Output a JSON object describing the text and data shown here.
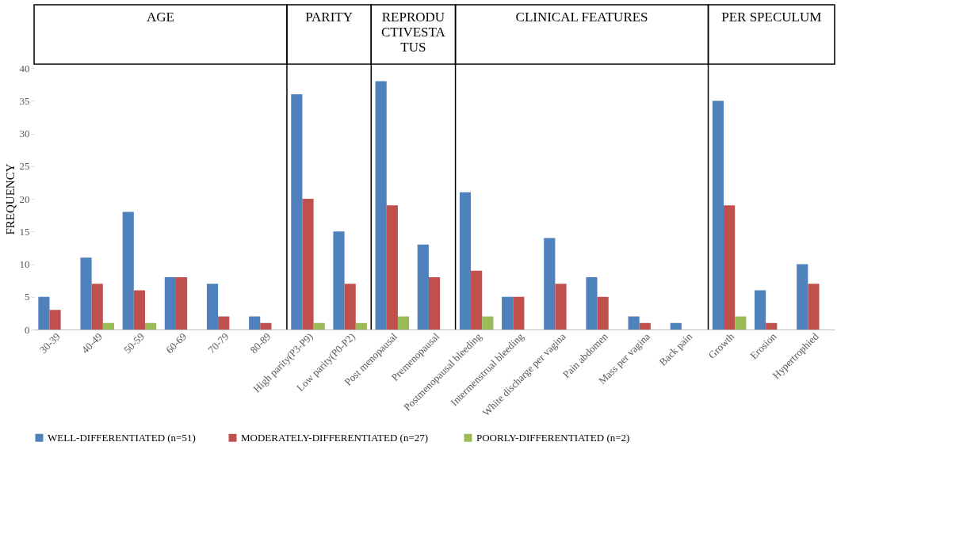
{
  "chart_data": {
    "type": "bar",
    "ylabel": "FREQUENCY",
    "categories": [
      "30-39",
      "40-49",
      "50-59",
      "60-69",
      "70-79",
      "80-89",
      "High parity(P3-P9)",
      "Low parity(P0-P2)",
      "Post menopausal",
      "Premenopausal",
      "Postmenopausal bleeding",
      "Intermenstrual bleeding",
      "White discharge per vagina",
      "Pain abdomen",
      "Mass per vagina",
      "Back pain",
      "Growth",
      "Erosion",
      "Hypertrophied"
    ],
    "series": [
      {
        "name": "WELL-DIFFERENTIATED (n=51)",
        "color": "#4f81bd",
        "values": [
          5,
          11,
          18,
          8,
          7,
          2,
          36,
          15,
          38,
          13,
          21,
          5,
          14,
          8,
          2,
          1,
          35,
          6,
          10
        ]
      },
      {
        "name": "MODERATELY-DIFFERENTIATED  (n=27)",
        "color": "#c0504d",
        "values": [
          3,
          7,
          6,
          8,
          2,
          1,
          20,
          7,
          19,
          8,
          9,
          5,
          7,
          5,
          1,
          0,
          19,
          1,
          7
        ]
      },
      {
        "name": "POORLY-DIFFERENTIATED (n=2)",
        "color": "#9bbb59",
        "values": [
          0,
          1,
          1,
          0,
          0,
          0,
          1,
          1,
          2,
          0,
          2,
          0,
          0,
          0,
          0,
          0,
          2,
          0,
          0
        ]
      }
    ],
    "annotations": [
      "AGE",
      "PARITY",
      "REPRODU CTIVESTA TUS",
      "CLINICAL FEATURES",
      "PER SPECULUM"
    ],
    "ylim": [
      0,
      40
    ],
    "yticks": [
      0,
      5,
      10,
      15,
      20,
      25,
      30,
      35,
      40
    ],
    "grid": false,
    "legend": "bottom"
  }
}
